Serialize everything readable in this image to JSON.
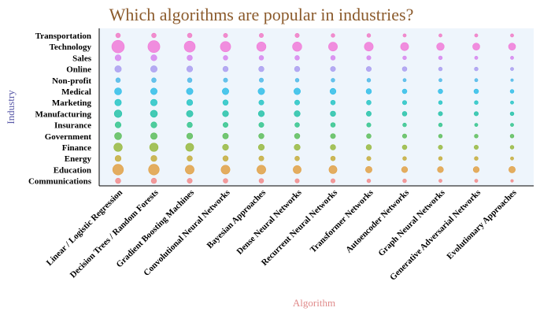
{
  "chart_data": {
    "type": "scatter",
    "title": "Which algorithms are popular in industries?",
    "xlabel": "Algorithm",
    "ylabel": "Industry",
    "x_categories": [
      "Linear / Logistic Regression",
      "Decision Trees / Random Forests",
      "Gradient Boosting Machines",
      "Convolutional Neural Networks",
      "Bayesian Approaches",
      "Dense Neural Networks",
      "Recurrent Neural Networks",
      "Transformer Networks",
      "Autoencoder Networks",
      "Graph Neural Networks",
      "Generative Adversarial Networks",
      "Evolutionary Approaches"
    ],
    "y_categories": [
      "Transportation",
      "Technology",
      "Sales",
      "Online",
      "Non-profit",
      "Medical",
      "Marketing",
      "Manufacturing",
      "Insurance",
      "Government",
      "Finance",
      "Energy",
      "Education",
      "Communications"
    ],
    "series_colors": {
      "Transportation": "#f07ac6",
      "Technology": "#f07ad8",
      "Sales": "#d684ef",
      "Online": "#a99cf0",
      "Non-profit": "#4db8e8",
      "Medical": "#2fbde8",
      "Marketing": "#25c4c4",
      "Manufacturing": "#24c2a8",
      "Insurance": "#31c48c",
      "Government": "#5cbd5a",
      "Finance": "#97b83e",
      "Energy": "#c4ac3a",
      "Education": "#e0a044",
      "Communications": "#f28a8a"
    },
    "size_values": [
      [
        3,
        3,
        3,
        2.5,
        2.5,
        2.5,
        2,
        2,
        1.5,
        1.5,
        1.5,
        1.5
      ],
      [
        22,
        20,
        17,
        15,
        12,
        12,
        11,
        11,
        9,
        8,
        7,
        7
      ],
      [
        5,
        5,
        4,
        3,
        3,
        3,
        3,
        2.5,
        2,
        2,
        1.5,
        1.5
      ],
      [
        6,
        6,
        5,
        4,
        4,
        4,
        3.5,
        3.5,
        3,
        2,
        2,
        1.5
      ],
      [
        3,
        3,
        3,
        2.5,
        2.5,
        2,
        2,
        2,
        1.5,
        1.5,
        1.5,
        1
      ],
      [
        7,
        6,
        6,
        6,
        6,
        6,
        5,
        4,
        3,
        3,
        3,
        2
      ],
      [
        6,
        6,
        5,
        4,
        3.5,
        3.5,
        3,
        3,
        2.5,
        2,
        2,
        1.5
      ],
      [
        8,
        7,
        6,
        5,
        5,
        5,
        4,
        3.5,
        3,
        2.5,
        2.5,
        2
      ],
      [
        5,
        5,
        4,
        3.5,
        3.5,
        3,
        3,
        2.5,
        2,
        2,
        1.5,
        1.5
      ],
      [
        7,
        6,
        5,
        4.5,
        4,
        4,
        3.5,
        3,
        2.5,
        2,
        2,
        2
      ],
      [
        10,
        10,
        9,
        5,
        5,
        5,
        4,
        4,
        3,
        2.5,
        2.5,
        2
      ],
      [
        5,
        5,
        4,
        4,
        3.5,
        3,
        3,
        2.5,
        2,
        2,
        2,
        1.5
      ],
      [
        16,
        16,
        11,
        11,
        11,
        9,
        9,
        6,
        5,
        5,
        5,
        6
      ],
      [
        4,
        4,
        3.5,
        3,
        3,
        2.5,
        2.5,
        2,
        2,
        1.5,
        1.5,
        1
      ]
    ],
    "legend": "none",
    "grid": false
  }
}
